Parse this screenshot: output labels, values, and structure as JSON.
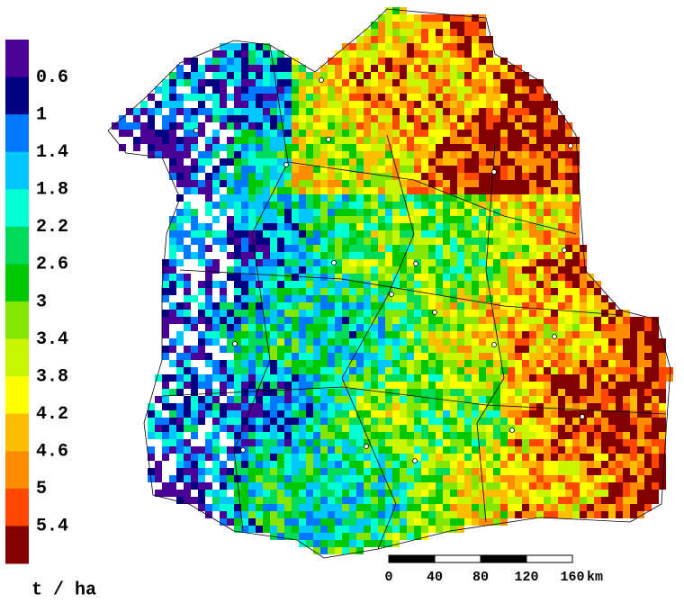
{
  "legend": {
    "labels": [
      0.6,
      1,
      1.4,
      1.8,
      2.2,
      2.6,
      3,
      3.4,
      3.8,
      4.2,
      4.6,
      5,
      5.4
    ],
    "colors": [
      "#4b0096",
      "#000080",
      "#0078ff",
      "#00c8ff",
      "#00ffd2",
      "#00dc5a",
      "#00c800",
      "#82e600",
      "#c8f500",
      "#ffff00",
      "#ffbe00",
      "#ff8c00",
      "#ff4600",
      "#ff0000",
      "#820000"
    ],
    "unit": "t / ha"
  },
  "scale_bar": {
    "ticks": [
      0,
      40,
      80,
      120,
      160
    ],
    "unit": "km"
  }
}
